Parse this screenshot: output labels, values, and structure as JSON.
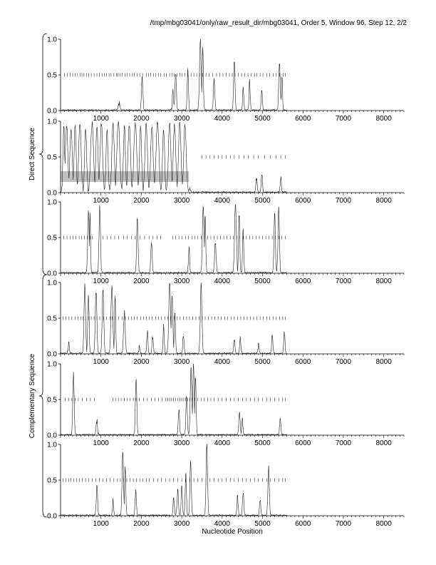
{
  "header": {
    "title": "/tmp/mbg03041/only/raw_result_dir/mbg03041, Order 5, Window 96, Step 12, 2/2"
  },
  "chart_data": {
    "type": "line",
    "xlabel": "Nucleotide Position",
    "group_labels": [
      "Direct Sequence",
      "Complementary Sequence"
    ],
    "xlim": [
      0,
      8500
    ],
    "ylim": [
      0,
      1
    ],
    "xticks": [
      1000,
      2000,
      3000,
      4000,
      5000,
      6000,
      7000,
      8000
    ],
    "yticks": [
      0.0,
      0.5,
      1.0
    ],
    "ytick_labels": [
      "0.0",
      "0.5",
      "1.0"
    ],
    "panels": [
      {
        "group": "Direct Sequence",
        "orf_marks": [
          100,
          170,
          240,
          300,
          360,
          420,
          480,
          530,
          580,
          640,
          700,
          760,
          830,
          900,
          960,
          1030,
          1080,
          1140,
          1200,
          1250,
          1320,
          1380,
          1420,
          1470,
          1530,
          1600,
          1650,
          1710,
          1780,
          1830,
          1900,
          1960,
          2030,
          2120,
          2180,
          2230,
          2300,
          2360,
          2420,
          2480,
          2560,
          2620,
          2700,
          2760,
          2810,
          2880,
          2950,
          3010,
          3080,
          3150,
          3230,
          3300,
          3370,
          3440,
          3520,
          3600,
          3680,
          3760,
          3860,
          3940,
          4020,
          4100,
          4180,
          4250,
          4320,
          4400,
          4480,
          4560,
          4640,
          4720,
          4800,
          4860,
          4940,
          5010,
          5100,
          5180,
          5260,
          5340,
          5420,
          5510,
          5560
        ],
        "peaks": [
          [
            1450,
            0.1,
            40
          ],
          [
            2020,
            0.45,
            35
          ],
          [
            2780,
            0.3,
            30
          ],
          [
            2850,
            0.55,
            35
          ],
          [
            3150,
            0.6,
            30
          ],
          [
            3460,
            1.0,
            40
          ],
          [
            3520,
            0.9,
            30
          ],
          [
            3800,
            0.45,
            35
          ],
          [
            4300,
            0.72,
            35
          ],
          [
            4520,
            0.32,
            30
          ],
          [
            4680,
            0.4,
            30
          ],
          [
            4980,
            0.32,
            30
          ],
          [
            5420,
            0.65,
            40
          ],
          [
            5480,
            0.5,
            25
          ]
        ]
      },
      {
        "group": "Direct Sequence",
        "orf_marks": [
          3500,
          3600,
          3700,
          3800,
          3900,
          4000,
          4100,
          4200,
          4300,
          4420,
          4540,
          4650,
          4780,
          4900,
          5050,
          5200,
          5330,
          5450,
          5560
        ],
        "highlight": {
          "x_start": 0,
          "x_end": 3180,
          "y_low": 0.15,
          "y_high": 0.3
        },
        "peaks": [
          [
            80,
            0.97,
            40
          ],
          [
            150,
            0.95,
            60
          ],
          [
            260,
            0.9,
            60
          ],
          [
            360,
            0.95,
            50
          ],
          [
            480,
            0.98,
            60
          ],
          [
            620,
            0.9,
            50
          ],
          [
            780,
            0.97,
            70
          ],
          [
            900,
            0.95,
            50
          ],
          [
            1010,
            0.98,
            60
          ],
          [
            1150,
            0.9,
            50
          ],
          [
            1300,
            0.96,
            60
          ],
          [
            1430,
            0.98,
            70
          ],
          [
            1580,
            0.93,
            50
          ],
          [
            1700,
            0.97,
            60
          ],
          [
            1850,
            0.98,
            70
          ],
          [
            1980,
            0.92,
            50
          ],
          [
            2120,
            0.97,
            60
          ],
          [
            2260,
            0.95,
            60
          ],
          [
            2400,
            0.98,
            70
          ],
          [
            2550,
            0.9,
            50
          ],
          [
            2700,
            0.97,
            60
          ],
          [
            2820,
            0.95,
            60
          ],
          [
            2950,
            0.98,
            60
          ],
          [
            3080,
            0.96,
            60
          ],
          [
            3200,
            0.05,
            40
          ],
          [
            4850,
            0.2,
            30
          ],
          [
            4980,
            0.28,
            30
          ],
          [
            5450,
            0.22,
            30
          ]
        ]
      },
      {
        "group": "Direct Sequence",
        "orf_marks": [
          80,
          160,
          240,
          310,
          380,
          460,
          520,
          590,
          660,
          730,
          790,
          1050,
          1150,
          1250,
          1340,
          1440,
          1560,
          1650,
          1760,
          1850,
          1970,
          2080,
          2190,
          2290,
          2390,
          2480,
          2780,
          2850,
          2930,
          3010,
          3090,
          3170,
          3260,
          3330,
          3400,
          3480,
          3560,
          3640,
          3720,
          3800,
          3880,
          3960,
          4040,
          4120,
          4200,
          4280,
          4360,
          4440,
          4520,
          4600,
          4680,
          4760,
          4840,
          4920,
          5000,
          5080,
          5160,
          5240,
          5320,
          5400,
          5480,
          5560
        ],
        "peaks": [
          [
            690,
            0.92,
            35
          ],
          [
            730,
            0.85,
            25
          ],
          [
            970,
            0.93,
            35
          ],
          [
            1900,
            0.78,
            35
          ],
          [
            2250,
            0.45,
            35
          ],
          [
            3180,
            0.35,
            30
          ],
          [
            3530,
            0.95,
            40
          ],
          [
            3580,
            0.8,
            30
          ],
          [
            3830,
            0.45,
            35
          ],
          [
            4330,
            0.96,
            45
          ],
          [
            4420,
            0.85,
            30
          ],
          [
            4520,
            0.62,
            30
          ],
          [
            5300,
            0.85,
            35
          ],
          [
            5400,
            0.92,
            35
          ]
        ]
      },
      {
        "group": "Complementary Sequence",
        "orf_marks": [
          60,
          130,
          210,
          280,
          360,
          430,
          500,
          550,
          620,
          700,
          760,
          830,
          900,
          970,
          1060,
          1140,
          1220,
          1280,
          1360,
          1440,
          1520,
          1600,
          1680,
          1760,
          1830,
          1900,
          1980,
          2050,
          2130,
          2200,
          2270,
          2350,
          2430,
          2500,
          2580,
          2650,
          2720,
          2810,
          2890,
          2960,
          3040,
          3120,
          3190,
          3270,
          3350,
          3430,
          3510,
          3580,
          3660,
          3740,
          3820,
          3900,
          3980,
          4060,
          4140,
          4220,
          4300,
          4380,
          4460,
          4540,
          4620,
          4700,
          4780,
          4860,
          4940,
          5020,
          5100,
          5180,
          5260,
          5340,
          5420,
          5500,
          5560
        ],
        "peaks": [
          [
            200,
            0.15,
            30
          ],
          [
            600,
            0.95,
            40
          ],
          [
            690,
            0.8,
            35
          ],
          [
            880,
            0.88,
            40
          ],
          [
            1050,
            0.92,
            40
          ],
          [
            1270,
            0.95,
            45
          ],
          [
            1350,
            0.8,
            30
          ],
          [
            1580,
            0.6,
            40
          ],
          [
            1950,
            0.1,
            30
          ],
          [
            2150,
            0.3,
            30
          ],
          [
            2280,
            0.25,
            30
          ],
          [
            2550,
            0.4,
            30
          ],
          [
            2700,
            0.98,
            45
          ],
          [
            2760,
            0.85,
            35
          ],
          [
            2830,
            0.6,
            30
          ],
          [
            3040,
            0.28,
            30
          ],
          [
            3480,
            0.97,
            40
          ],
          [
            4300,
            0.18,
            30
          ],
          [
            4450,
            0.22,
            30
          ],
          [
            4900,
            0.15,
            30
          ],
          [
            5240,
            0.28,
            30
          ],
          [
            5540,
            0.3,
            30
          ]
        ]
      },
      {
        "group": "Complementary Sequence",
        "orf_marks": [
          120,
          200,
          280,
          360,
          440,
          540,
          640,
          740,
          840,
          1300,
          1360,
          1430,
          1500,
          1580,
          1650,
          1720,
          1800,
          1870,
          1950,
          2050,
          2150,
          2250,
          2340,
          2430,
          2520,
          2600,
          2650,
          2700,
          2750,
          2800,
          2850,
          2900,
          2950,
          3000,
          3050,
          3100,
          3150,
          3200,
          3260,
          3320,
          3400,
          3480,
          3560,
          3640,
          3720,
          3800,
          3900,
          4000,
          4100,
          4200,
          4300,
          4400,
          4500,
          4600,
          4700,
          4800,
          4900,
          5000,
          5100,
          5200,
          5300,
          5400,
          5500,
          5560
        ],
        "peaks": [
          [
            320,
            0.85,
            35
          ],
          [
            900,
            0.2,
            35
          ],
          [
            1870,
            0.8,
            35
          ],
          [
            2930,
            0.35,
            35
          ],
          [
            3120,
            0.55,
            35
          ],
          [
            3230,
            0.92,
            40
          ],
          [
            3290,
            1.0,
            35
          ],
          [
            3340,
            0.82,
            30
          ],
          [
            4430,
            0.32,
            35
          ],
          [
            4500,
            0.25,
            25
          ],
          [
            5440,
            0.25,
            30
          ]
        ]
      },
      {
        "group": "Complementary Sequence",
        "orf_marks": [
          60,
          130,
          200,
          260,
          330,
          400,
          470,
          540,
          620,
          700,
          780,
          870,
          960,
          1050,
          1140,
          1230,
          1320,
          1410,
          1480,
          1560,
          1640,
          1720,
          1800,
          1880,
          1960,
          2040,
          2120,
          2200,
          2300,
          2400,
          2500,
          2600,
          2700,
          2800,
          2900,
          3000,
          3100,
          3200,
          3300,
          3400,
          3500,
          3600,
          3700,
          3800,
          3900,
          4000,
          4100,
          4200,
          4300,
          4400,
          4500,
          4600,
          4700,
          4800,
          4900,
          5000,
          5100,
          5200,
          5300,
          5400,
          5500,
          5560
        ],
        "peaks": [
          [
            900,
            0.42,
            35
          ],
          [
            1300,
            0.22,
            30
          ],
          [
            1540,
            0.93,
            35
          ],
          [
            1600,
            0.68,
            30
          ],
          [
            1860,
            0.35,
            30
          ],
          [
            2800,
            0.25,
            30
          ],
          [
            2900,
            0.35,
            35
          ],
          [
            3000,
            0.45,
            30
          ],
          [
            3100,
            0.6,
            30
          ],
          [
            3220,
            0.78,
            35
          ],
          [
            3620,
            1.0,
            35
          ],
          [
            4380,
            0.28,
            30
          ],
          [
            4520,
            0.35,
            30
          ],
          [
            4940,
            0.25,
            30
          ],
          [
            5150,
            0.68,
            35
          ]
        ]
      }
    ]
  }
}
